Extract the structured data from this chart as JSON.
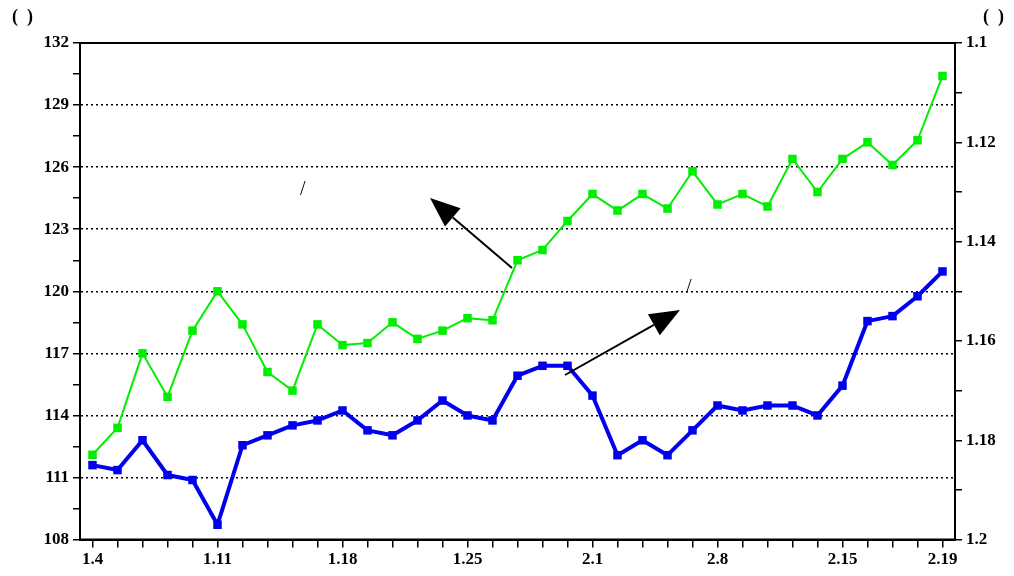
{
  "chart_data": {
    "type": "line",
    "ylabel": "(  )",
    "y2label": "(  )",
    "categories": [
      "1.4",
      null,
      null,
      null,
      null,
      "1.11",
      null,
      null,
      null,
      null,
      "1.18",
      null,
      null,
      null,
      null,
      "1.25",
      null,
      null,
      null,
      null,
      "2.1",
      null,
      null,
      null,
      null,
      "2.8",
      null,
      null,
      null,
      null,
      "2.15",
      null,
      null,
      null,
      "2.19"
    ],
    "series": [
      {
        "color": "#00ee00",
        "values": [
          112.1,
          113.4,
          117.0,
          114.9,
          118.1,
          120.0,
          118.4,
          116.1,
          115.2,
          118.4,
          117.4,
          117.5,
          118.5,
          117.7,
          118.1,
          118.7,
          118.6,
          121.5,
          122.0,
          123.4,
          124.7,
          123.9,
          124.7,
          124.0,
          125.8,
          124.2,
          124.7,
          124.1,
          126.4,
          124.8,
          126.4,
          127.2,
          126.1,
          127.3,
          130.4
        ]
      },
      {
        "color": "#0000ee",
        "axis": "y2",
        "values": [
          1.185,
          1.186,
          1.18,
          1.187,
          1.188,
          1.197,
          1.181,
          1.179,
          1.177,
          1.176,
          1.174,
          1.178,
          1.179,
          1.176,
          1.172,
          1.175,
          1.176,
          1.167,
          1.165,
          1.165,
          1.171,
          1.183,
          1.18,
          1.183,
          1.178,
          1.173,
          1.174,
          1.173,
          1.173,
          1.175,
          1.169,
          1.156,
          1.155,
          1.151,
          1.146
        ]
      }
    ],
    "ylim": [
      108,
      132
    ],
    "yticks": [
      108,
      {
        "value": 109.5,
        "label": null
      },
      111,
      {
        "value": 112.5,
        "label": null
      },
      114,
      {
        "value": 115.5,
        "label": null
      },
      117,
      {
        "value": 118.5,
        "label": null
      },
      120,
      {
        "value": 121.5,
        "label": null
      },
      123,
      {
        "value": 124.5,
        "label": null
      },
      126,
      {
        "value": 127.5,
        "label": null
      },
      129,
      {
        "value": 130.5,
        "label": null
      },
      132
    ],
    "y2lim": [
      1.2,
      1.1
    ],
    "y2ticks": [
      {
        "value": 1.1,
        "label": "1.1"
      },
      {
        "value": 1.11,
        "label": null
      },
      1.12,
      {
        "value": 1.13,
        "label": null
      },
      1.14,
      {
        "value": 1.15,
        "label": null
      },
      1.16,
      {
        "value": 1.17,
        "label": null
      },
      1.18,
      {
        "value": 1.19,
        "label": null
      },
      {
        "value": 1.2,
        "label": "1.2"
      }
    ],
    "grid": "y",
    "legend": false,
    "marker": "square",
    "line_style": "solid",
    "annotations": [
      "/",
      "/"
    ]
  }
}
